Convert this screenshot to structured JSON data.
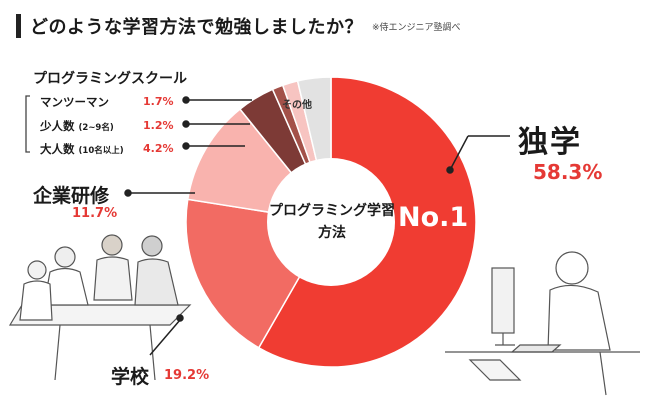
{
  "header": {
    "title": "どのような学習方法で勉強しましたか？",
    "source": "※侍エンジニア塾調べ"
  },
  "group": {
    "label": "プログラミングスクール",
    "items": [
      {
        "label": "マンツーマン",
        "note": "",
        "value_label": "1.7%"
      },
      {
        "label": "少人数",
        "note": "(2~9名)",
        "value_label": "1.2%"
      },
      {
        "label": "大人数",
        "note": "(10名以上)",
        "value_label": "4.2%"
      }
    ]
  },
  "labels": {
    "dokugaku": "独学",
    "dokugaku_pct": "58.3%",
    "kigyou": "企業研修",
    "kigyou_pct": "11.7%",
    "gakkou": "学校",
    "gakkou_pct": "19.2%",
    "other": "その他",
    "center": "プログラミング学習方法",
    "rank": "No.1"
  },
  "chart_data": {
    "type": "pie",
    "donut": true,
    "title": "どのような学習方法で勉強しましたか？",
    "slices": [
      {
        "name": "独学",
        "value": 58.3,
        "color": "#f03c32"
      },
      {
        "name": "学校",
        "value": 19.2,
        "color": "#f26b63"
      },
      {
        "name": "企業研修",
        "value": 11.7,
        "color": "#f9b3ae"
      },
      {
        "name": "大人数",
        "value": 4.2,
        "color": "#7d3a36"
      },
      {
        "name": "少人数",
        "value": 1.2,
        "color": "#a35149"
      },
      {
        "name": "マンツーマン",
        "value": 1.7,
        "color": "#f7c4c1"
      },
      {
        "name": "その他",
        "value": 3.7,
        "color": "#e2e2e2"
      }
    ]
  }
}
